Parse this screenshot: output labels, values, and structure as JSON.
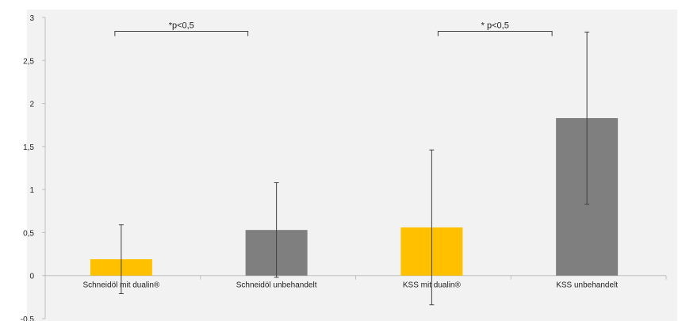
{
  "colors": {
    "page_bg": "#ffffff",
    "plot_bg": "#f2f2f2",
    "dualin": "#ffc000",
    "untreated": "#7f7f7f",
    "error_bar": "#404040",
    "bracket": "#404040",
    "axis": "#bfbfbf"
  },
  "chart_data": {
    "type": "bar",
    "title": "",
    "xlabel": "",
    "ylabel": "",
    "ylim": [
      -0.5,
      3
    ],
    "y_ticks": [
      -0.5,
      0,
      0.5,
      1,
      1.5,
      2,
      2.5,
      3
    ],
    "y_tick_labels": [
      "-0,5",
      "0",
      "0,5",
      "1",
      "1,5",
      "2",
      "2,5",
      "3"
    ],
    "grid": false,
    "legend": "none",
    "categories": [
      "Schneidöl mit dualin®",
      "Schneidöl unbehandelt",
      "KSS mit dualin®",
      "KSS unbehandelt"
    ],
    "values": [
      0.19,
      0.53,
      0.56,
      1.83
    ],
    "error_plus_minus": [
      0.4,
      0.55,
      0.9,
      1.0
    ],
    "bar_color_keys": [
      "dualin",
      "untreated",
      "dualin",
      "untreated"
    ],
    "significance": [
      {
        "between": [
          0,
          1
        ],
        "label": "*p<0,5",
        "level": 2.83
      },
      {
        "between": [
          2,
          3
        ],
        "label": "* p<0,5",
        "level": 2.83
      }
    ]
  }
}
